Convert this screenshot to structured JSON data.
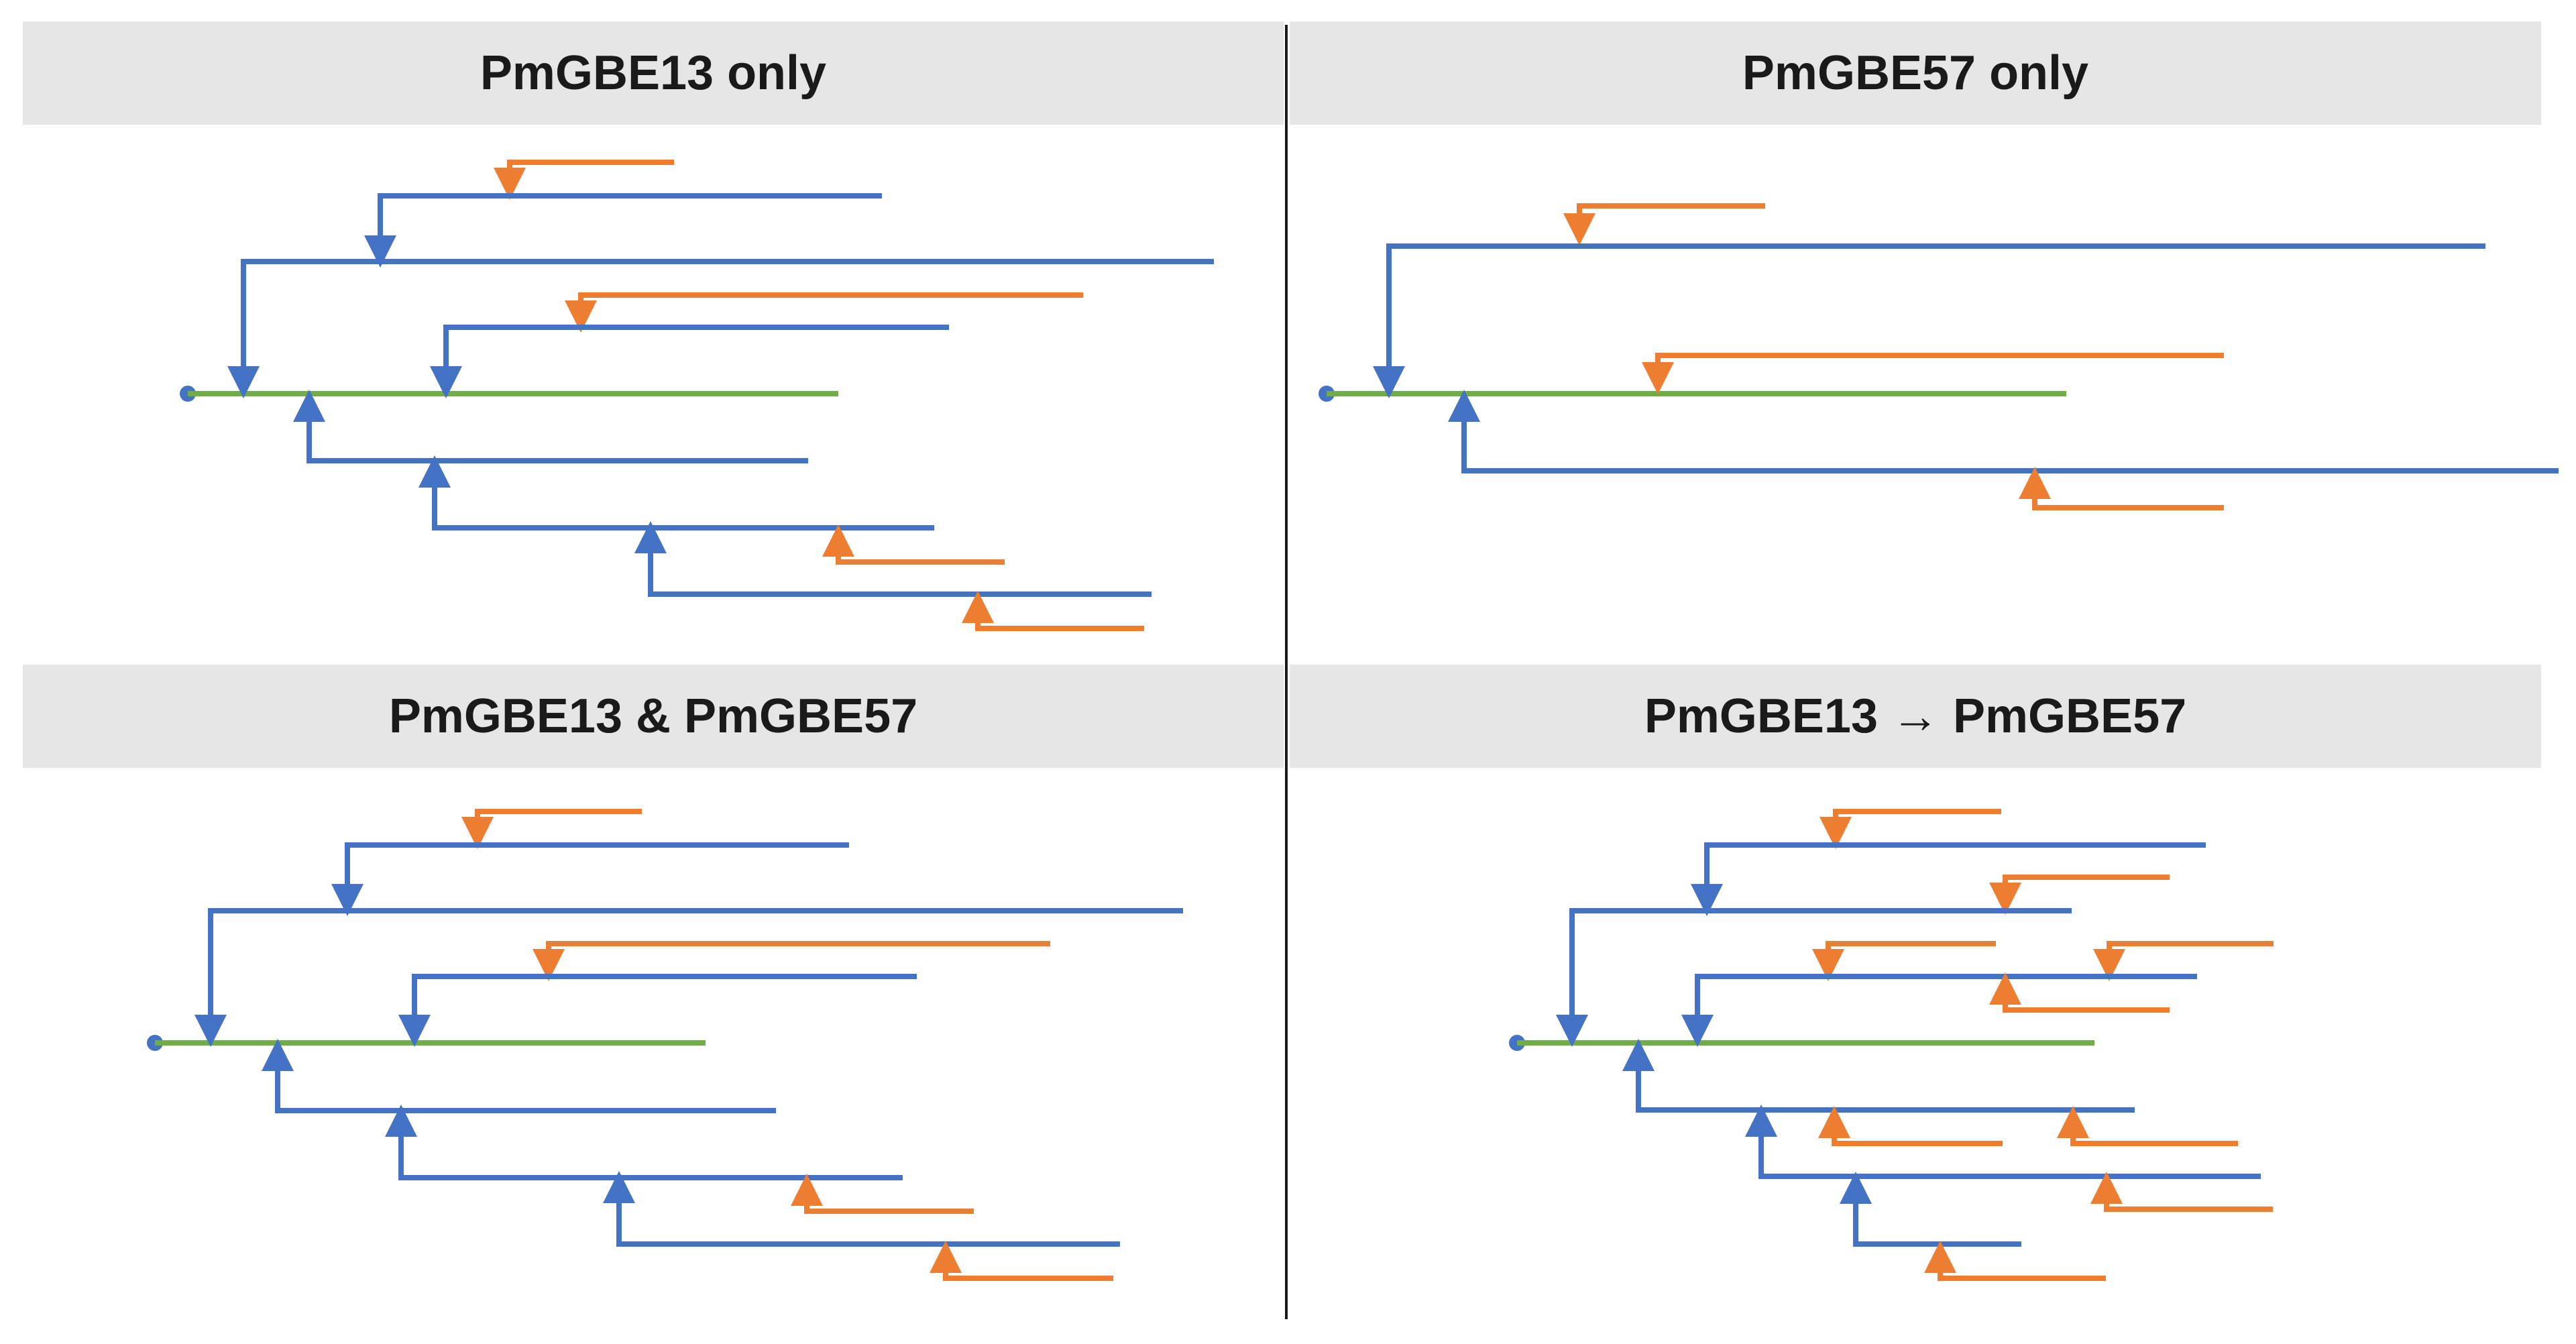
{
  "panels": {
    "top_left": {
      "title": "PmGBE13 only"
    },
    "top_right": {
      "title": "PmGBE57 only"
    },
    "bottom_left": {
      "title": "PmGBE13 & PmGBE57"
    },
    "bottom_right": {
      "title": "PmGBE13 → PmGBE57"
    }
  },
  "colors": {
    "root_chain": "#70ad47",
    "blue_branch": "#4472c4",
    "orange_branch": "#ed7d31",
    "header_bg": "#e6e6e6",
    "divider": "#1a1a1a"
  }
}
